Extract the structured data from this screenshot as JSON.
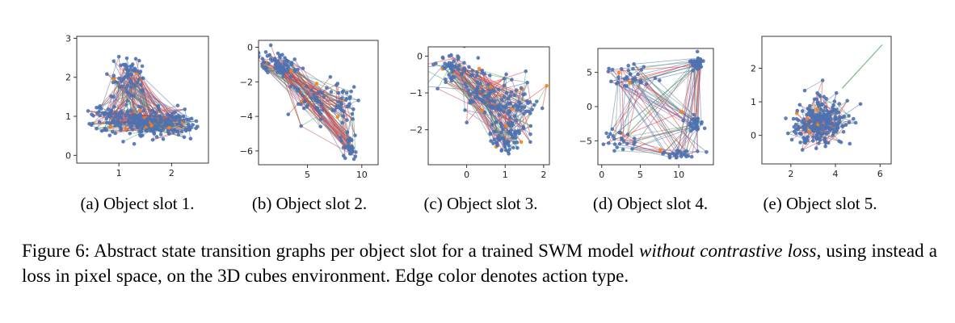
{
  "figure": {
    "caption": {
      "label": "Figure 6:",
      "text_before": "Abstract state transition graphs per object slot for a trained SWM model",
      "emphasis": "without contrastive loss",
      "text_after": ", using instead a loss in pixel space, on the 3D cubes environment. Edge color denotes action type."
    }
  },
  "colors": {
    "node": "#4c72b0",
    "node_alt": "#ff7f0e",
    "edges": [
      "#4c72b0",
      "#dd3333",
      "#55a868",
      "#8172b2",
      "#c44e52"
    ]
  },
  "chart_data": [
    {
      "type": "scatter",
      "caption": "(a) Object slot 1.",
      "title": "",
      "xlabel": "",
      "ylabel": "",
      "xlim": [
        0.2,
        2.7
      ],
      "ylim": [
        -0.2,
        3.05
      ],
      "xticks": [
        1,
        2
      ],
      "yticks": [
        0,
        1,
        2,
        3
      ],
      "grid": false,
      "clusters": [
        {
          "x": 1.5,
          "y": 0.85,
          "sx": 0.35,
          "sy": 0.18,
          "n": 170
        },
        {
          "x": 1.2,
          "y": 1.95,
          "sx": 0.18,
          "sy": 0.28,
          "n": 70
        },
        {
          "x": 0.7,
          "y": 0.95,
          "sx": 0.18,
          "sy": 0.18,
          "n": 40
        },
        {
          "x": 2.0,
          "y": 0.8,
          "sx": 0.22,
          "sy": 0.2,
          "n": 60
        }
      ]
    },
    {
      "type": "scatter",
      "caption": "(b) Object slot 2.",
      "title": "",
      "xlabel": "",
      "ylabel": "",
      "xlim": [
        0.5,
        11.5
      ],
      "ylim": [
        -6.8,
        0.4
      ],
      "xticks": [
        5,
        10
      ],
      "yticks": [
        0,
        -2,
        -4,
        -6
      ],
      "grid": false,
      "clusters": [
        {
          "x": 2.5,
          "y": -1.0,
          "sx": 1.0,
          "sy": 0.35,
          "n": 80
        },
        {
          "x": 5.5,
          "y": -3.2,
          "sx": 1.2,
          "sy": 0.8,
          "n": 50
        },
        {
          "x": 8.8,
          "y": -5.8,
          "sx": 0.4,
          "sy": 0.3,
          "n": 30
        },
        {
          "x": 8.5,
          "y": -3.3,
          "sx": 0.6,
          "sy": 0.5,
          "n": 30
        }
      ]
    },
    {
      "type": "scatter",
      "caption": "(c) Object slot 3.",
      "title": "",
      "xlabel": "",
      "ylabel": "",
      "xlim": [
        -1.0,
        2.15
      ],
      "ylim": [
        -2.95,
        0.25
      ],
      "xticks": [
        0,
        1,
        2
      ],
      "yticks": [
        0,
        -1,
        -2
      ],
      "grid": false,
      "clusters": [
        {
          "x": -0.3,
          "y": -0.3,
          "sx": 0.3,
          "sy": 0.25,
          "n": 60
        },
        {
          "x": 0.4,
          "y": -1.0,
          "sx": 0.25,
          "sy": 0.3,
          "n": 50
        },
        {
          "x": 1.1,
          "y": -1.6,
          "sx": 0.3,
          "sy": 0.45,
          "n": 110
        },
        {
          "x": 1.0,
          "y": -2.4,
          "sx": 0.2,
          "sy": 0.15,
          "n": 30
        }
      ]
    },
    {
      "type": "scatter",
      "caption": "(d) Object slot 4.",
      "title": "",
      "xlabel": "",
      "ylabel": "",
      "xlim": [
        -0.5,
        14.5
      ],
      "ylim": [
        -8.5,
        8.5
      ],
      "xticks": [
        0,
        5,
        10
      ],
      "yticks": [
        5,
        0,
        -5
      ],
      "grid": false,
      "clusters": [
        {
          "x": 12.5,
          "y": 6.5,
          "sx": 0.5,
          "sy": 0.6,
          "n": 40
        },
        {
          "x": 3.5,
          "y": 4.5,
          "sx": 1.2,
          "sy": 1.0,
          "n": 35
        },
        {
          "x": 12.0,
          "y": -2.5,
          "sx": 0.6,
          "sy": 1.0,
          "n": 30
        },
        {
          "x": 2.5,
          "y": -5.0,
          "sx": 1.0,
          "sy": 0.8,
          "n": 25
        },
        {
          "x": 10.0,
          "y": -7.0,
          "sx": 1.2,
          "sy": 0.4,
          "n": 25
        }
      ]
    },
    {
      "type": "scatter",
      "caption": "(e) Object slot 5.",
      "title": "",
      "xlabel": "",
      "ylabel": "",
      "xlim": [
        0.7,
        6.5
      ],
      "ylim": [
        -0.85,
        2.95
      ],
      "xticks": [
        2,
        4,
        6
      ],
      "yticks": [
        0,
        1,
        2
      ],
      "grid": false,
      "clusters": [
        {
          "x": 3.3,
          "y": 0.4,
          "sx": 0.55,
          "sy": 0.35,
          "n": 230
        }
      ],
      "outlier_edge": {
        "from": [
          4.3,
          1.4
        ],
        "to": [
          6.1,
          2.7
        ]
      }
    }
  ]
}
